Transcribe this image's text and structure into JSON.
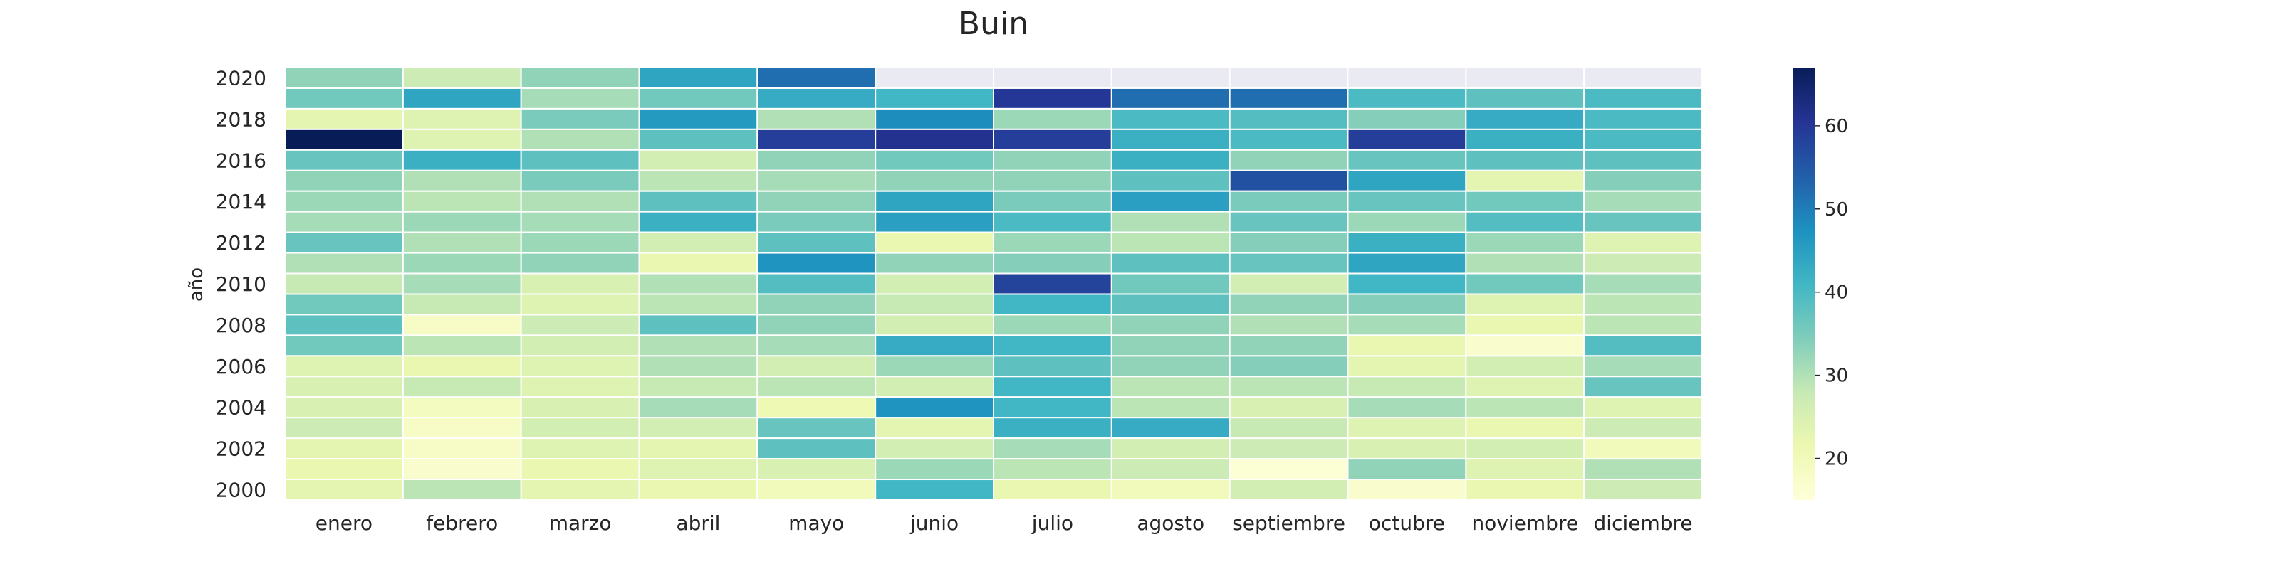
{
  "chart_data": {
    "type": "heatmap",
    "title": "Buin",
    "xlabel": "",
    "ylabel": "año",
    "columns": [
      "enero",
      "febrero",
      "marzo",
      "abril",
      "mayo",
      "junio",
      "julio",
      "agosto",
      "septiembre",
      "octubre",
      "noviembre",
      "diciembre"
    ],
    "rows": [
      2020,
      2019,
      2018,
      2017,
      2016,
      2015,
      2014,
      2013,
      2012,
      2011,
      2010,
      2009,
      2008,
      2007,
      2006,
      2005,
      2004,
      2003,
      2002,
      2001,
      2000
    ],
    "y_tick_labels": [
      "2020",
      "2018",
      "2016",
      "2014",
      "2012",
      "2010",
      "2008",
      "2006",
      "2004",
      "2002",
      "2000"
    ],
    "values": [
      [
        33,
        27,
        33,
        44,
        52,
        null,
        null,
        null,
        null,
        null,
        null,
        null
      ],
      [
        36,
        44,
        31,
        36,
        43,
        41,
        60,
        52,
        52,
        40,
        38,
        40
      ],
      [
        23,
        24,
        35,
        46,
        30,
        48,
        32,
        40,
        39,
        34,
        43,
        40
      ],
      [
        67,
        24,
        30,
        38,
        59,
        61,
        59,
        42,
        40,
        59,
        42,
        40
      ],
      [
        37,
        42,
        38,
        26,
        33,
        36,
        33,
        42,
        33,
        37,
        38,
        38
      ],
      [
        33,
        30,
        35,
        29,
        31,
        33,
        33,
        38,
        56,
        44,
        23,
        34
      ],
      [
        32,
        29,
        30,
        38,
        33,
        44,
        35,
        45,
        35,
        37,
        36,
        31
      ],
      [
        31,
        32,
        31,
        42,
        35,
        45,
        40,
        30,
        37,
        32,
        39,
        37
      ],
      [
        37,
        30,
        32,
        26,
        38,
        22,
        32,
        29,
        34,
        42,
        32,
        24
      ],
      [
        30,
        32,
        33,
        22,
        47,
        33,
        34,
        38,
        37,
        44,
        30,
        27
      ],
      [
        28,
        31,
        25,
        30,
        39,
        26,
        58,
        36,
        26,
        41,
        36,
        31
      ],
      [
        36,
        28,
        24,
        29,
        33,
        28,
        41,
        38,
        33,
        34,
        24,
        29
      ],
      [
        38,
        18,
        27,
        38,
        33,
        26,
        32,
        33,
        30,
        31,
        22,
        29
      ],
      [
        36,
        29,
        26,
        30,
        31,
        43,
        41,
        33,
        33,
        22,
        17,
        39
      ],
      [
        24,
        22,
        24,
        30,
        26,
        32,
        38,
        33,
        34,
        23,
        26,
        31
      ],
      [
        25,
        28,
        24,
        28,
        29,
        26,
        41,
        29,
        29,
        28,
        24,
        37
      ],
      [
        25,
        19,
        25,
        31,
        21,
        47,
        41,
        29,
        25,
        31,
        29,
        24
      ],
      [
        27,
        18,
        26,
        26,
        37,
        23,
        42,
        43,
        28,
        24,
        22,
        27
      ],
      [
        23,
        18,
        24,
        23,
        38,
        26,
        31,
        26,
        27,
        25,
        26,
        20
      ],
      [
        22,
        17,
        22,
        24,
        25,
        32,
        29,
        27,
        16,
        33,
        24,
        30
      ],
      [
        23,
        29,
        23,
        22,
        20,
        41,
        22,
        20,
        26,
        17,
        22,
        27
      ]
    ],
    "colorbar": {
      "min": 15,
      "max": 67,
      "ticks": [
        "20",
        "30",
        "40",
        "50",
        "60"
      ],
      "tick_values": [
        20,
        30,
        40,
        50,
        60
      ],
      "colormap": "YlGnBu"
    },
    "missing_color": "#eaeaf2",
    "grid": false,
    "legend": "colorbar-right"
  }
}
